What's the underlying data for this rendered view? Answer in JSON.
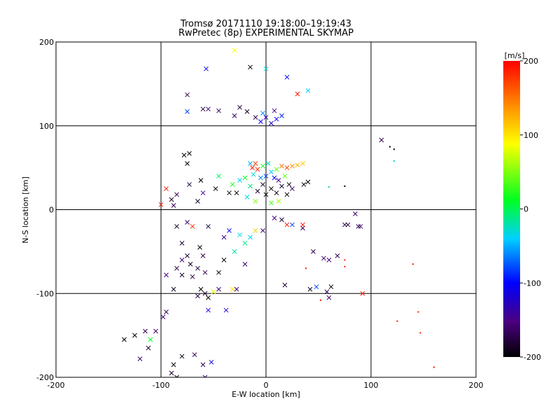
{
  "chart_data": {
    "type": "scatter",
    "title": "Tromsø 20171110 19:18:00–19:19:43",
    "subtitle": "RwPretec (8p) EXPERIMENTAL SKYMAP",
    "xlabel": "E-W location [km]",
    "ylabel": "N-S location [km]",
    "xlim": [
      -200,
      200
    ],
    "ylim": [
      -200,
      200
    ],
    "x_ticks": [
      -200,
      -100,
      0,
      100,
      200
    ],
    "y_ticks": [
      -200,
      -100,
      0,
      100,
      200
    ],
    "grid": true,
    "markers": [
      "x",
      "dot"
    ],
    "colorbar": {
      "label": "[m/s]",
      "range": [
        -200,
        200
      ],
      "ticks": [
        -200,
        -100,
        0,
        100,
        200
      ],
      "colormap": "rainbow (black-purple-blue-cyan-green-yellow-orange-red)"
    },
    "points": [
      {
        "x": -5,
        "y": 105,
        "v": -110,
        "m": "x"
      },
      {
        "x": 0,
        "y": 110,
        "v": -130,
        "m": "x"
      },
      {
        "x": 5,
        "y": 103,
        "v": -120,
        "m": "x"
      },
      {
        "x": 10,
        "y": 108,
        "v": -100,
        "m": "x"
      },
      {
        "x": -3,
        "y": 115,
        "v": -60,
        "m": "x"
      },
      {
        "x": 8,
        "y": 118,
        "v": -150,
        "m": "x"
      },
      {
        "x": -10,
        "y": 110,
        "v": -170,
        "m": "x"
      },
      {
        "x": 15,
        "y": 112,
        "v": -90,
        "m": "x"
      },
      {
        "x": -18,
        "y": 117,
        "v": -190,
        "m": "x"
      },
      {
        "x": -25,
        "y": 122,
        "v": -175,
        "m": "x"
      },
      {
        "x": -30,
        "y": 112,
        "v": -165,
        "m": "x"
      },
      {
        "x": -45,
        "y": 118,
        "v": -170,
        "m": "x"
      },
      {
        "x": -55,
        "y": 120,
        "v": -160,
        "m": "x"
      },
      {
        "x": -75,
        "y": 117,
        "v": -80,
        "m": "x"
      },
      {
        "x": -75,
        "y": 137,
        "v": -170,
        "m": "x"
      },
      {
        "x": -60,
        "y": 120,
        "v": -180,
        "m": "x"
      },
      {
        "x": 30,
        "y": 138,
        "v": 190,
        "m": "x"
      },
      {
        "x": 40,
        "y": 142,
        "v": -40,
        "m": "x"
      },
      {
        "x": 20,
        "y": 158,
        "v": -100,
        "m": "x"
      },
      {
        "x": 0,
        "y": 168,
        "v": -30,
        "m": "x"
      },
      {
        "x": -15,
        "y": 170,
        "v": -200,
        "m": "x"
      },
      {
        "x": -30,
        "y": 190,
        "v": 90,
        "m": "x"
      },
      {
        "x": -57,
        "y": 168,
        "v": -100,
        "m": "x"
      },
      {
        "x": 110,
        "y": 83,
        "v": -170,
        "m": "x"
      },
      {
        "x": 118,
        "y": 75,
        "v": -200,
        "m": "dot"
      },
      {
        "x": 122,
        "y": 72,
        "v": -200,
        "m": "dot"
      },
      {
        "x": 122,
        "y": 58,
        "v": -30,
        "m": "dot"
      },
      {
        "x": -10,
        "y": 55,
        "v": 170,
        "m": "x"
      },
      {
        "x": -13,
        "y": 50,
        "v": 190,
        "m": "x"
      },
      {
        "x": -8,
        "y": 48,
        "v": 180,
        "m": "x"
      },
      {
        "x": -15,
        "y": 55,
        "v": -50,
        "m": "x"
      },
      {
        "x": -3,
        "y": 52,
        "v": 20,
        "m": "x"
      },
      {
        "x": 2,
        "y": 55,
        "v": -20,
        "m": "x"
      },
      {
        "x": 10,
        "y": 48,
        "v": 40,
        "m": "x"
      },
      {
        "x": 15,
        "y": 52,
        "v": 150,
        "m": "x"
      },
      {
        "x": 20,
        "y": 50,
        "v": 170,
        "m": "x"
      },
      {
        "x": 25,
        "y": 52,
        "v": 140,
        "m": "x"
      },
      {
        "x": 30,
        "y": 53,
        "v": 120,
        "m": "x"
      },
      {
        "x": 35,
        "y": 55,
        "v": 110,
        "m": "x"
      },
      {
        "x": 5,
        "y": 45,
        "v": -40,
        "m": "x"
      },
      {
        "x": 0,
        "y": 40,
        "v": -80,
        "m": "x"
      },
      {
        "x": 8,
        "y": 38,
        "v": -100,
        "m": "x"
      },
      {
        "x": -5,
        "y": 38,
        "v": -60,
        "m": "x"
      },
      {
        "x": -12,
        "y": 42,
        "v": -30,
        "m": "x"
      },
      {
        "x": -20,
        "y": 38,
        "v": 10,
        "m": "x"
      },
      {
        "x": 12,
        "y": 35,
        "v": -150,
        "m": "x"
      },
      {
        "x": 18,
        "y": 40,
        "v": 40,
        "m": "x"
      },
      {
        "x": 22,
        "y": 30,
        "v": -190,
        "m": "x"
      },
      {
        "x": 15,
        "y": 28,
        "v": -180,
        "m": "x"
      },
      {
        "x": -3,
        "y": 30,
        "v": -190,
        "m": "x"
      },
      {
        "x": 5,
        "y": 25,
        "v": -200,
        "m": "x"
      },
      {
        "x": 10,
        "y": 20,
        "v": -195,
        "m": "x"
      },
      {
        "x": 0,
        "y": 18,
        "v": -200,
        "m": "x"
      },
      {
        "x": -8,
        "y": 22,
        "v": -185,
        "m": "x"
      },
      {
        "x": 20,
        "y": 18,
        "v": -200,
        "m": "x"
      },
      {
        "x": 25,
        "y": 25,
        "v": -160,
        "m": "x"
      },
      {
        "x": -15,
        "y": 28,
        "v": -10,
        "m": "x"
      },
      {
        "x": -25,
        "y": 35,
        "v": -40,
        "m": "x"
      },
      {
        "x": -32,
        "y": 30,
        "v": 20,
        "m": "x"
      },
      {
        "x": -28,
        "y": 20,
        "v": -200,
        "m": "x"
      },
      {
        "x": -35,
        "y": 20,
        "v": -190,
        "m": "x"
      },
      {
        "x": -18,
        "y": 15,
        "v": -30,
        "m": "x"
      },
      {
        "x": -10,
        "y": 10,
        "v": 50,
        "m": "x"
      },
      {
        "x": 5,
        "y": 8,
        "v": 30,
        "m": "x"
      },
      {
        "x": 12,
        "y": 10,
        "v": 60,
        "m": "x"
      },
      {
        "x": -48,
        "y": 25,
        "v": -200,
        "m": "x"
      },
      {
        "x": -62,
        "y": 35,
        "v": -200,
        "m": "x"
      },
      {
        "x": -78,
        "y": 65,
        "v": -200,
        "m": "x"
      },
      {
        "x": -73,
        "y": 67,
        "v": -195,
        "m": "x"
      },
      {
        "x": -75,
        "y": 55,
        "v": -200,
        "m": "x"
      },
      {
        "x": -95,
        "y": 25,
        "v": 190,
        "m": "x"
      },
      {
        "x": -100,
        "y": 6,
        "v": 190,
        "m": "x"
      },
      {
        "x": -88,
        "y": 5,
        "v": -170,
        "m": "x"
      },
      {
        "x": -90,
        "y": 12,
        "v": -180,
        "m": "x"
      },
      {
        "x": -85,
        "y": 18,
        "v": -170,
        "m": "x"
      },
      {
        "x": -73,
        "y": 30,
        "v": -180,
        "m": "x"
      },
      {
        "x": -65,
        "y": 10,
        "v": -185,
        "m": "x"
      },
      {
        "x": -60,
        "y": 20,
        "v": -140,
        "m": "x"
      },
      {
        "x": -45,
        "y": 40,
        "v": 0,
        "m": "x"
      },
      {
        "x": 36,
        "y": 30,
        "v": -200,
        "m": "x"
      },
      {
        "x": 40,
        "y": 33,
        "v": -200,
        "m": "x"
      },
      {
        "x": 8,
        "y": -10,
        "v": -150,
        "m": "x"
      },
      {
        "x": 15,
        "y": -12,
        "v": -180,
        "m": "x"
      },
      {
        "x": 20,
        "y": -18,
        "v": 190,
        "m": "x"
      },
      {
        "x": 25,
        "y": -18,
        "v": -80,
        "m": "x"
      },
      {
        "x": 35,
        "y": -22,
        "v": -170,
        "m": "x"
      },
      {
        "x": -3,
        "y": -25,
        "v": -170,
        "m": "x"
      },
      {
        "x": -10,
        "y": -25,
        "v": 110,
        "m": "x"
      },
      {
        "x": -15,
        "y": -33,
        "v": -40,
        "m": "x"
      },
      {
        "x": -25,
        "y": -30,
        "v": -30,
        "m": "x"
      },
      {
        "x": -35,
        "y": -25,
        "v": -100,
        "m": "x"
      },
      {
        "x": -40,
        "y": -33,
        "v": -140,
        "m": "x"
      },
      {
        "x": -30,
        "y": -50,
        "v": -20,
        "m": "x"
      },
      {
        "x": -20,
        "y": -40,
        "v": -10,
        "m": "x"
      },
      {
        "x": -55,
        "y": -20,
        "v": -180,
        "m": "x"
      },
      {
        "x": -70,
        "y": -20,
        "v": 180,
        "m": "x"
      },
      {
        "x": -75,
        "y": -15,
        "v": -160,
        "m": "x"
      },
      {
        "x": -85,
        "y": -20,
        "v": -190,
        "m": "x"
      },
      {
        "x": -80,
        "y": -40,
        "v": -180,
        "m": "x"
      },
      {
        "x": -63,
        "y": -45,
        "v": -200,
        "m": "x"
      },
      {
        "x": -60,
        "y": -55,
        "v": -170,
        "m": "x"
      },
      {
        "x": -75,
        "y": -55,
        "v": -180,
        "m": "x"
      },
      {
        "x": -80,
        "y": -60,
        "v": -160,
        "m": "x"
      },
      {
        "x": -85,
        "y": -70,
        "v": -175,
        "m": "x"
      },
      {
        "x": -72,
        "y": -65,
        "v": -190,
        "m": "x"
      },
      {
        "x": -65,
        "y": -70,
        "v": -180,
        "m": "x"
      },
      {
        "x": -58,
        "y": -75,
        "v": -170,
        "m": "x"
      },
      {
        "x": -70,
        "y": -80,
        "v": -175,
        "m": "x"
      },
      {
        "x": -80,
        "y": -78,
        "v": -185,
        "m": "x"
      },
      {
        "x": -95,
        "y": -78,
        "v": -150,
        "m": "x"
      },
      {
        "x": -88,
        "y": -95,
        "v": -190,
        "m": "x"
      },
      {
        "x": -62,
        "y": -95,
        "v": -200,
        "m": "x"
      },
      {
        "x": -58,
        "y": -100,
        "v": -180,
        "m": "x"
      },
      {
        "x": -55,
        "y": -105,
        "v": -200,
        "m": "x"
      },
      {
        "x": -65,
        "y": -103,
        "v": -170,
        "m": "x"
      },
      {
        "x": -50,
        "y": -98,
        "v": 80,
        "m": "x"
      },
      {
        "x": -45,
        "y": -95,
        "v": -160,
        "m": "x"
      },
      {
        "x": -45,
        "y": -75,
        "v": -200,
        "m": "x"
      },
      {
        "x": -40,
        "y": -60,
        "v": -190,
        "m": "x"
      },
      {
        "x": -20,
        "y": -65,
        "v": -160,
        "m": "x"
      },
      {
        "x": -55,
        "y": -120,
        "v": -110,
        "m": "x"
      },
      {
        "x": -95,
        "y": -122,
        "v": -170,
        "m": "x"
      },
      {
        "x": -98,
        "y": -128,
        "v": -160,
        "m": "x"
      },
      {
        "x": -105,
        "y": -145,
        "v": -160,
        "m": "x"
      },
      {
        "x": -110,
        "y": -155,
        "v": 10,
        "m": "x"
      },
      {
        "x": -115,
        "y": -145,
        "v": -170,
        "m": "x"
      },
      {
        "x": -125,
        "y": -150,
        "v": -200,
        "m": "x"
      },
      {
        "x": -112,
        "y": -165,
        "v": -180,
        "m": "x"
      },
      {
        "x": -135,
        "y": -155,
        "v": -200,
        "m": "x"
      },
      {
        "x": -120,
        "y": -178,
        "v": -160,
        "m": "x"
      },
      {
        "x": -88,
        "y": -185,
        "v": -200,
        "m": "x"
      },
      {
        "x": -90,
        "y": -195,
        "v": -180,
        "m": "x"
      },
      {
        "x": -85,
        "y": -200,
        "v": -200,
        "m": "x"
      },
      {
        "x": -80,
        "y": -175,
        "v": -190,
        "m": "x"
      },
      {
        "x": -60,
        "y": -185,
        "v": -170,
        "m": "x"
      },
      {
        "x": -52,
        "y": -182,
        "v": -110,
        "m": "x"
      },
      {
        "x": -58,
        "y": -200,
        "v": -160,
        "m": "x"
      },
      {
        "x": -68,
        "y": -173,
        "v": -170,
        "m": "x"
      },
      {
        "x": 18,
        "y": -90,
        "v": -180,
        "m": "x"
      },
      {
        "x": 42,
        "y": -95,
        "v": -190,
        "m": "x"
      },
      {
        "x": 48,
        "y": -92,
        "v": -80,
        "m": "x"
      },
      {
        "x": 58,
        "y": -98,
        "v": -170,
        "m": "x"
      },
      {
        "x": 60,
        "y": -105,
        "v": -160,
        "m": "x"
      },
      {
        "x": 62,
        "y": -92,
        "v": -200,
        "m": "x"
      },
      {
        "x": 92,
        "y": -100,
        "v": 190,
        "m": "x"
      },
      {
        "x": 75,
        "y": -18,
        "v": -170,
        "m": "x"
      },
      {
        "x": 78,
        "y": -18,
        "v": -180,
        "m": "x"
      },
      {
        "x": 85,
        "y": -5,
        "v": -160,
        "m": "x"
      },
      {
        "x": 88,
        "y": -20,
        "v": -180,
        "m": "x"
      },
      {
        "x": 90,
        "y": -20,
        "v": -150,
        "m": "x"
      },
      {
        "x": 45,
        "y": -50,
        "v": -170,
        "m": "x"
      },
      {
        "x": 55,
        "y": -58,
        "v": -160,
        "m": "x"
      },
      {
        "x": 60,
        "y": -60,
        "v": -150,
        "m": "x"
      },
      {
        "x": 68,
        "y": -55,
        "v": -170,
        "m": "x"
      },
      {
        "x": 35,
        "y": -18,
        "v": 190,
        "m": "x"
      },
      {
        "x": -32,
        "y": -95,
        "v": 100,
        "m": "x"
      },
      {
        "x": -28,
        "y": -95,
        "v": -160,
        "m": "x"
      },
      {
        "x": -38,
        "y": -120,
        "v": -120,
        "m": "x"
      },
      {
        "x": 140,
        "y": -65,
        "v": 190,
        "m": "dot"
      },
      {
        "x": 125,
        "y": -133,
        "v": 190,
        "m": "dot"
      },
      {
        "x": 145,
        "y": -122,
        "v": 190,
        "m": "dot"
      },
      {
        "x": 147,
        "y": -147,
        "v": 190,
        "m": "dot"
      },
      {
        "x": 160,
        "y": -188,
        "v": 190,
        "m": "dot"
      },
      {
        "x": 75,
        "y": 28,
        "v": -200,
        "m": "dot"
      },
      {
        "x": 60,
        "y": 27,
        "v": -20,
        "m": "dot"
      },
      {
        "x": 75,
        "y": -60,
        "v": 190,
        "m": "dot"
      },
      {
        "x": 75,
        "y": -68,
        "v": 190,
        "m": "dot"
      },
      {
        "x": 52,
        "y": -108,
        "v": 190,
        "m": "dot"
      },
      {
        "x": 38,
        "y": -70,
        "v": 190,
        "m": "dot"
      }
    ]
  }
}
